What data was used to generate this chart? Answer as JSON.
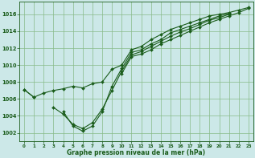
{
  "bg_color": "#cce8e8",
  "grid_color": "#88bb88",
  "line_color": "#1a5c1a",
  "marker_color": "#1a5c1a",
  "xlabel": "Graphe pression niveau de la mer (hPa)",
  "xlabel_color": "#1a5c1a",
  "ylim": [
    1001.0,
    1017.5
  ],
  "xlim": [
    -0.5,
    23.5
  ],
  "yticks": [
    1002,
    1004,
    1006,
    1008,
    1010,
    1012,
    1014,
    1016
  ],
  "xticks": [
    0,
    1,
    2,
    3,
    4,
    5,
    6,
    7,
    8,
    9,
    10,
    11,
    12,
    13,
    14,
    15,
    16,
    17,
    18,
    19,
    20,
    21,
    22,
    23
  ],
  "lines": [
    {
      "x": [
        0,
        1,
        2,
        3,
        4,
        5,
        6,
        7,
        8,
        9,
        10,
        11,
        12,
        13,
        14,
        15,
        16,
        17,
        18,
        19,
        20,
        21,
        22,
        23
      ],
      "y": [
        1007.1,
        1006.2,
        1006.7,
        1007.0,
        1007.2,
        1007.5,
        1007.3,
        1007.8,
        1008.0,
        1009.5,
        1010.0,
        1011.8,
        1012.2,
        1013.0,
        1013.6,
        1014.2,
        1014.6,
        1015.0,
        1015.4,
        1015.8,
        1016.0,
        1016.2,
        1016.5,
        1016.8
      ]
    },
    {
      "x": [
        0,
        1,
        2,
        3,
        4,
        5,
        6,
        7,
        8,
        9,
        10,
        11,
        12,
        13,
        14,
        15,
        16,
        17,
        18,
        19,
        20,
        21,
        22,
        23
      ],
      "y": [
        1007.1,
        1006.2,
        null,
        null,
        1004.5,
        1002.8,
        1002.2,
        1002.8,
        1004.5,
        1007.5,
        1009.6,
        1011.5,
        1011.8,
        1012.5,
        1013.0,
        1013.8,
        1014.2,
        1014.6,
        1015.0,
        1015.4,
        1015.8,
        1016.1,
        null,
        null
      ]
    },
    {
      "x": [
        0,
        1,
        2,
        3,
        4,
        5,
        6,
        7,
        8,
        9,
        10,
        11,
        12,
        13,
        14,
        15,
        16,
        17,
        18,
        19,
        20,
        21,
        22,
        23
      ],
      "y": [
        null,
        null,
        null,
        1005.0,
        1004.2,
        1003.0,
        1002.5,
        1003.2,
        1004.8,
        1007.0,
        1009.3,
        1011.2,
        1011.6,
        1012.2,
        1012.8,
        1013.4,
        1013.9,
        1014.3,
        1014.8,
        1015.3,
        1015.6,
        1016.0,
        null,
        null
      ]
    },
    {
      "x": [
        0,
        1,
        2,
        3,
        4,
        5,
        6,
        7,
        8,
        9,
        10,
        11,
        12,
        13,
        14,
        15,
        16,
        17,
        18,
        19,
        20,
        21,
        22,
        23
      ],
      "y": [
        null,
        null,
        null,
        null,
        null,
        null,
        null,
        null,
        null,
        null,
        1009.0,
        1011.0,
        1011.3,
        1011.8,
        1012.5,
        1013.0,
        1013.5,
        1014.0,
        1014.5,
        1015.0,
        1015.4,
        1015.8,
        1016.2,
        1016.7
      ]
    }
  ]
}
